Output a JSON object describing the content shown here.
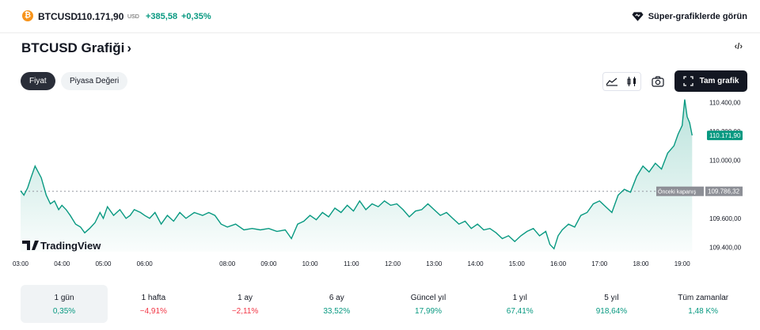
{
  "header": {
    "coin_glyph": "₿",
    "symbol": "BTCUSD",
    "price": "110.171,90",
    "currency": "USD",
    "change": "+385,58",
    "change_percent": "+0,35%",
    "super_charts_label": "Süper-grafiklerde görün"
  },
  "title": {
    "text": "BTCUSD Grafiği",
    "chevron": "›",
    "embed_icon": "‹/›"
  },
  "tabs": [
    {
      "label": "Fiyat",
      "active": true
    },
    {
      "label": "Piyasa Değeri",
      "active": false
    }
  ],
  "toolbar": {
    "icons": [
      "area-chart-icon",
      "candles-icon",
      "camera-icon"
    ],
    "fullscreen_label": "Tam grafik"
  },
  "chart_data": {
    "type": "area",
    "x_tick_labels": [
      "03:00",
      "04:00",
      "05:00",
      "06:00",
      "08:00",
      "09:00",
      "10:00",
      "11:00",
      "12:00",
      "13:00",
      "14:00",
      "15:00",
      "16:00",
      "17:00",
      "18:00",
      "19:00"
    ],
    "y_tick_labels": [
      "110.400,00",
      "110.200,00",
      "110.000,00",
      "109.600,00",
      "109.400,00"
    ],
    "ylim": [
      109370,
      110440
    ],
    "xlim": [
      3.0,
      19.35
    ],
    "series": [
      {
        "x": [
          3.0,
          3.08,
          3.17,
          3.25,
          3.35,
          3.5,
          3.62,
          3.72,
          3.82,
          3.92,
          4.0,
          4.1,
          4.2,
          4.33,
          4.45,
          4.55,
          4.67,
          4.8,
          4.92,
          5.0,
          5.1,
          5.25,
          5.4,
          5.55,
          5.65,
          5.75,
          5.9,
          6.0,
          6.12,
          6.25,
          6.4,
          6.55,
          6.7,
          6.85,
          7.0,
          7.2,
          7.4,
          7.55,
          7.7,
          7.85,
          8.0,
          8.2,
          8.4,
          8.6,
          8.8,
          9.0,
          9.2,
          9.4,
          9.55,
          9.7,
          9.85,
          10.0,
          10.15,
          10.3,
          10.45,
          10.6,
          10.75,
          10.9,
          11.05,
          11.2,
          11.35,
          11.5,
          11.65,
          11.8,
          11.95,
          12.1,
          12.25,
          12.4,
          12.55,
          12.7,
          12.85,
          13.0,
          13.15,
          13.3,
          13.45,
          13.6,
          13.75,
          13.9,
          14.05,
          14.2,
          14.35,
          14.5,
          14.65,
          14.8,
          14.95,
          15.1,
          15.25,
          15.4,
          15.55,
          15.7,
          15.8,
          15.9,
          16.0,
          16.1,
          16.25,
          16.4,
          16.55,
          16.7,
          16.85,
          17.0,
          17.15,
          17.3,
          17.45,
          17.6,
          17.75,
          17.9,
          18.05,
          18.2,
          18.35,
          18.5,
          18.65,
          18.8,
          18.9,
          19.0,
          19.06,
          19.12,
          19.18,
          19.24
        ],
        "values": [
          109790,
          109760,
          109810,
          109880,
          109960,
          109880,
          109760,
          109700,
          109720,
          109660,
          109690,
          109660,
          109620,
          109560,
          109540,
          109500,
          109530,
          109570,
          109640,
          109600,
          109680,
          109620,
          109660,
          109600,
          109620,
          109660,
          109640,
          109620,
          109600,
          109640,
          109560,
          109620,
          109580,
          109640,
          109600,
          109640,
          109620,
          109640,
          109620,
          109560,
          109540,
          109560,
          109520,
          109530,
          109520,
          109530,
          109510,
          109520,
          109460,
          109560,
          109580,
          109620,
          109590,
          109640,
          109610,
          109670,
          109640,
          109690,
          109650,
          109720,
          109660,
          109700,
          109680,
          109720,
          109690,
          109700,
          109660,
          109610,
          109650,
          109660,
          109700,
          109660,
          109620,
          109640,
          109600,
          109560,
          109580,
          109530,
          109560,
          109520,
          109530,
          109500,
          109460,
          109480,
          109440,
          109480,
          109510,
          109530,
          109480,
          109510,
          109420,
          109390,
          109480,
          109520,
          109560,
          109540,
          109620,
          109640,
          109700,
          109720,
          109680,
          109640,
          109760,
          109800,
          109780,
          109890,
          109960,
          109920,
          109980,
          109940,
          110050,
          110100,
          110180,
          110240,
          110420,
          110300,
          110260,
          110172
        ]
      }
    ],
    "price_label": "110.171,90",
    "prev_close_label": "Önceki kapanış",
    "prev_close_value": "109.786,32",
    "prev_close": 109786.32,
    "watermark": "TradingView",
    "line_color": "#089981",
    "area_color": "#089981",
    "grid": false
  },
  "periods": [
    {
      "label": "1 gün",
      "value": "0,35%",
      "dir": "pos",
      "active": true
    },
    {
      "label": "1 hafta",
      "value": "−4,91%",
      "dir": "neg",
      "active": false
    },
    {
      "label": "1 ay",
      "value": "−2,11%",
      "dir": "neg",
      "active": false
    },
    {
      "label": "6 ay",
      "value": "33,52%",
      "dir": "pos",
      "active": false
    },
    {
      "label": "Güncel yıl",
      "value": "17,99%",
      "dir": "pos",
      "active": false
    },
    {
      "label": "1 yıl",
      "value": "67,41%",
      "dir": "pos",
      "active": false
    },
    {
      "label": "5 yıl",
      "value": "918,64%",
      "dir": "pos",
      "active": false
    },
    {
      "label": "Tüm zamanlar",
      "value": "1,48 K%",
      "dir": "pos",
      "active": false
    }
  ],
  "colors": {
    "accent": "#089981",
    "negative": "#f23645",
    "coin": "#f7931a",
    "dark": "#131722"
  }
}
